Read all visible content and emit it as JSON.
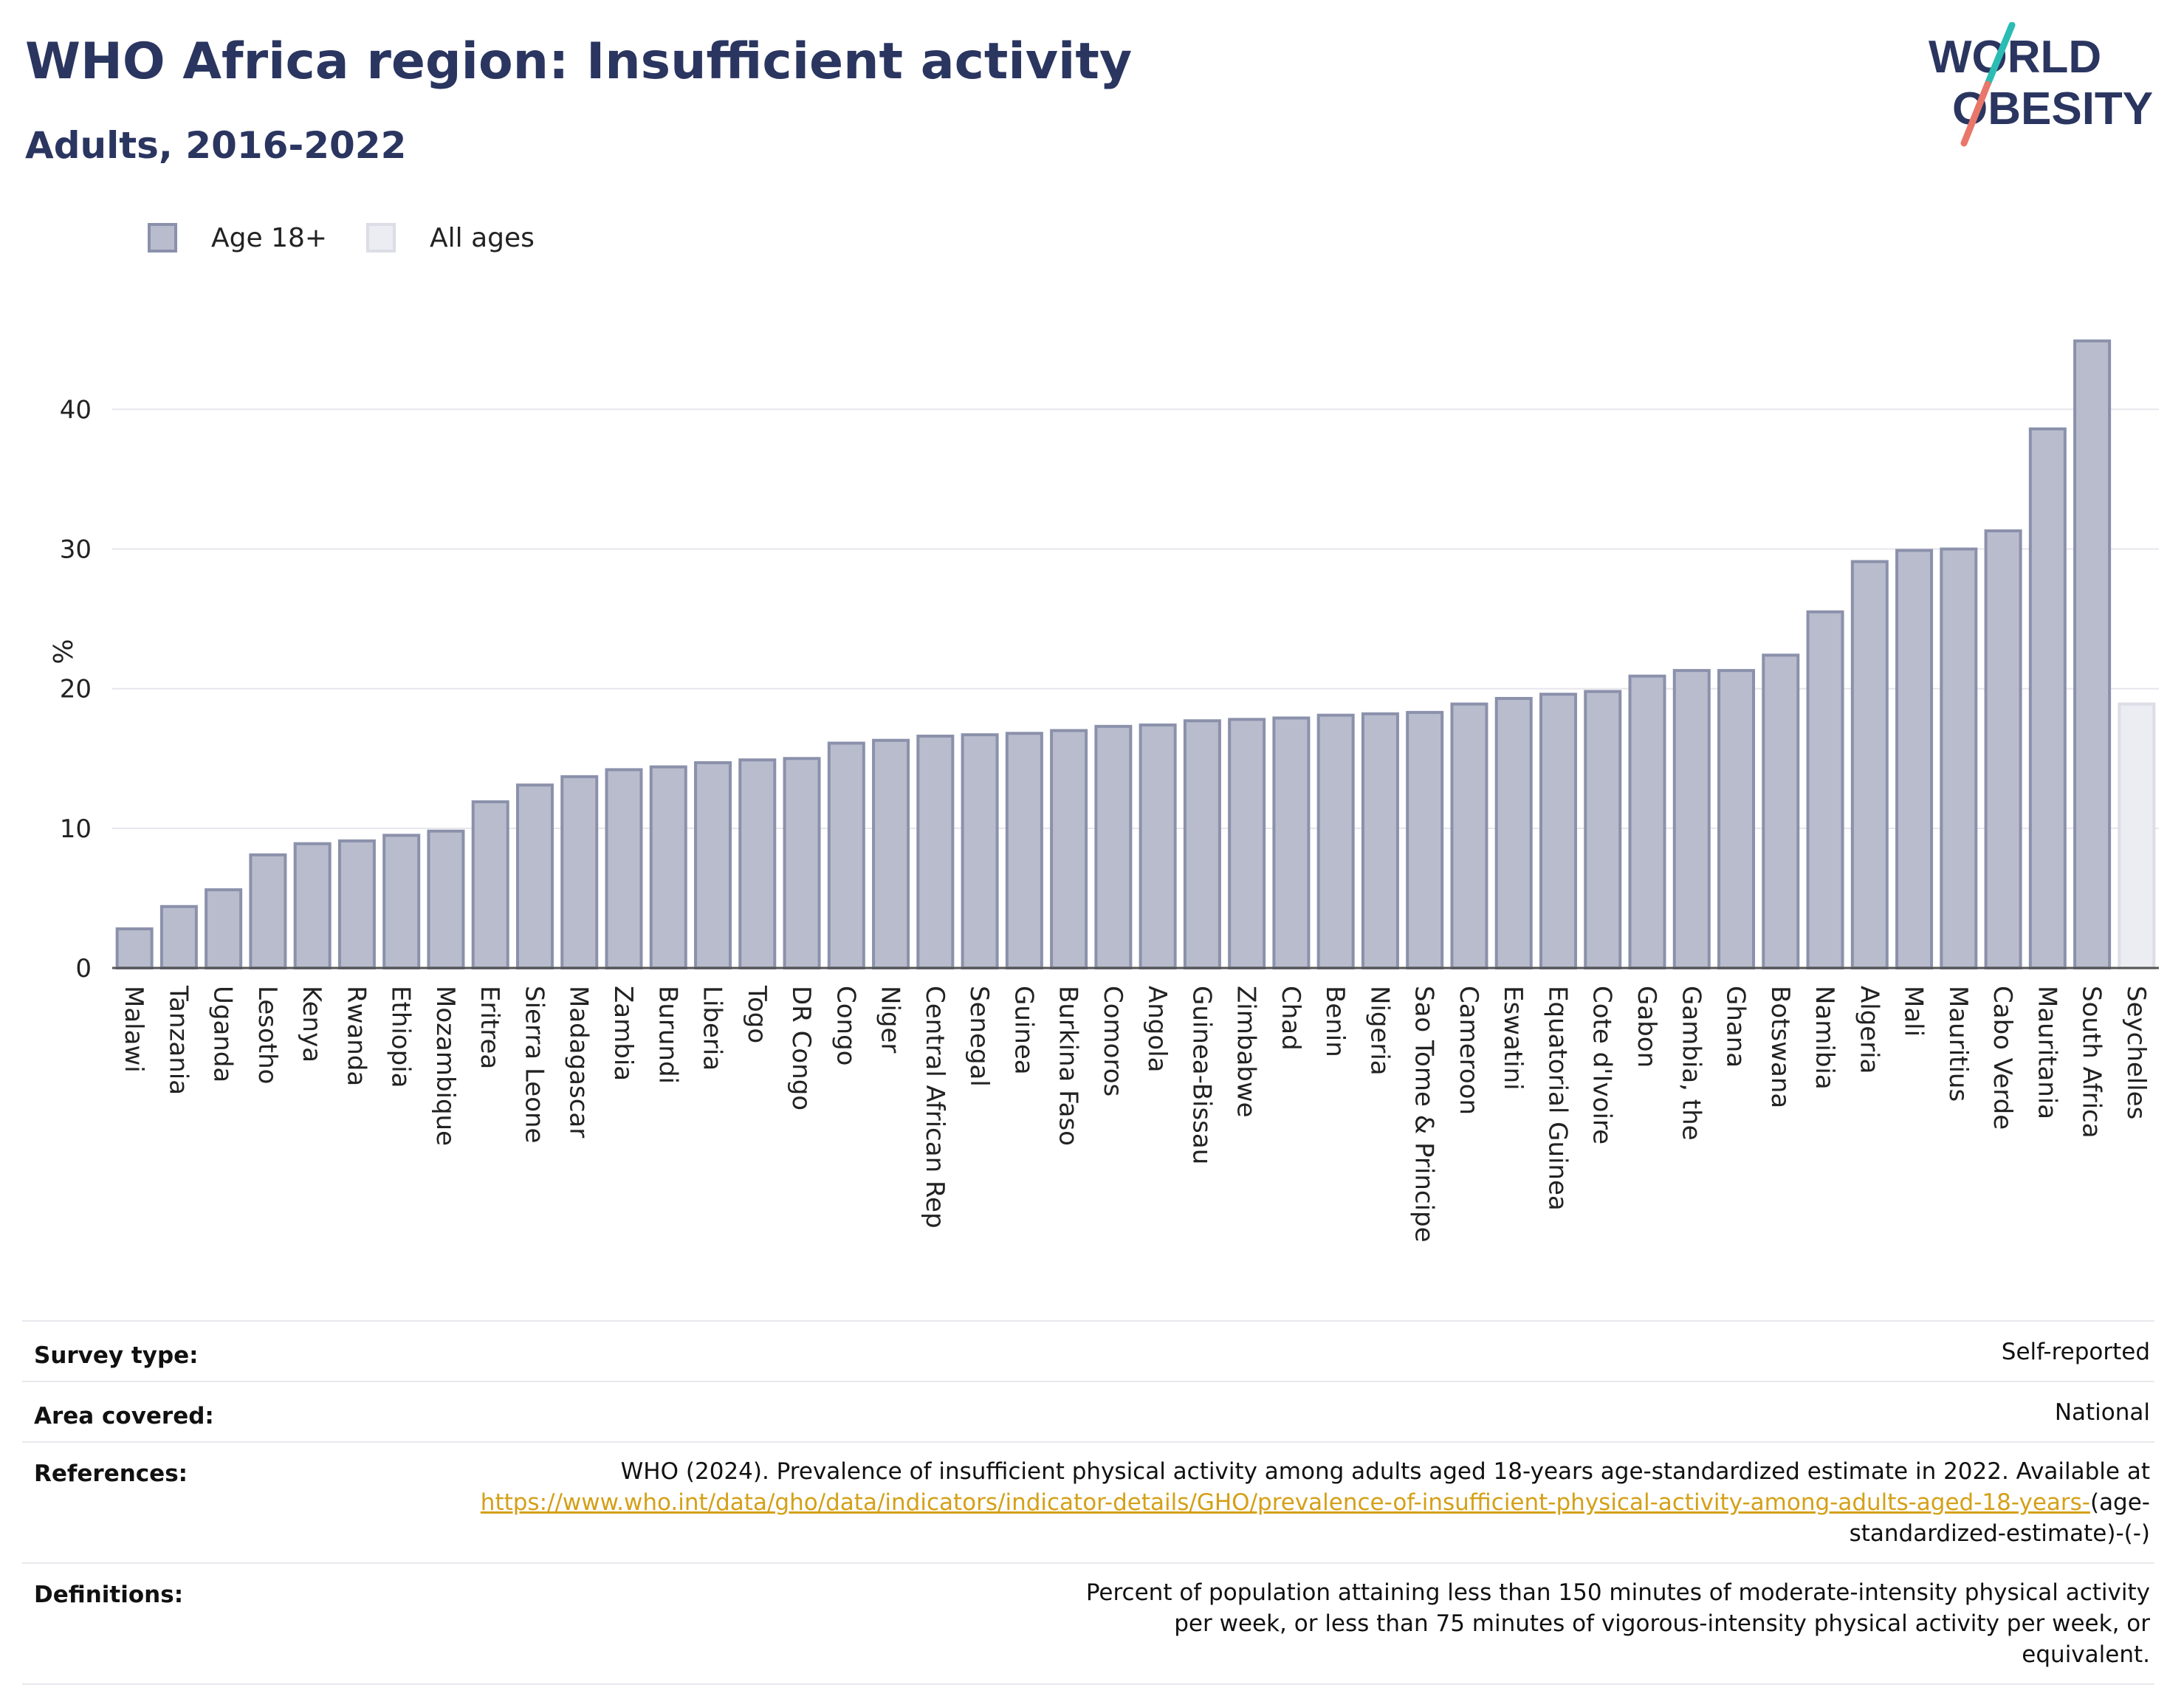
{
  "header": {
    "title": "WHO Africa region: Insufficient activity",
    "subtitle": "Adults, 2016-2022"
  },
  "logo": {
    "line1": "WORLD",
    "line2": "OBESITY",
    "colors": {
      "text": "#2a3560",
      "slash_teal": "#2bbcb4",
      "slash_coral": "#e8766a"
    }
  },
  "legend": [
    {
      "label": "Age 18+",
      "color": "#b8bccc"
    },
    {
      "label": "All ages",
      "color": "#ecedf2"
    }
  ],
  "chart_data": {
    "type": "bar",
    "ylabel": "%",
    "ylim": [
      0,
      47
    ],
    "yticks": [
      0,
      10,
      20,
      30,
      40
    ],
    "grid": true,
    "legend_placement": "top-left",
    "categories": [
      "Malawi",
      "Tanzania",
      "Uganda",
      "Lesotho",
      "Kenya",
      "Rwanda",
      "Ethiopia",
      "Mozambique",
      "Eritrea",
      "Sierra Leone",
      "Madagascar",
      "Zambia",
      "Burundi",
      "Liberia",
      "Togo",
      "DR Congo",
      "Congo",
      "Niger",
      "Central African Rep",
      "Senegal",
      "Guinea",
      "Burkina Faso",
      "Comoros",
      "Angola",
      "Guinea-Bissau",
      "Zimbabwe",
      "Chad",
      "Benin",
      "Nigeria",
      "Sao Tome & Principe",
      "Cameroon",
      "Eswatini",
      "Equatorial Guinea",
      "Cote d'Ivoire",
      "Gabon",
      "Gambia, the",
      "Ghana",
      "Botswana",
      "Namibia",
      "Algeria",
      "Mali",
      "Mauritius",
      "Cabo Verde",
      "Mauritania",
      "South Africa",
      "Seychelles"
    ],
    "series": [
      {
        "name": "Age 18+",
        "color": "#b8bccc",
        "values": [
          2.8,
          4.4,
          5.6,
          8.1,
          8.9,
          9.1,
          9.5,
          9.8,
          11.9,
          13.1,
          13.7,
          14.2,
          14.4,
          14.7,
          14.9,
          15.0,
          16.1,
          16.3,
          16.6,
          16.7,
          16.8,
          17.0,
          17.3,
          17.4,
          17.7,
          17.8,
          17.9,
          18.1,
          18.2,
          18.3,
          18.9,
          19.3,
          19.6,
          19.8,
          20.9,
          21.3,
          21.3,
          22.4,
          25.5,
          29.1,
          29.9,
          30.0,
          31.3,
          38.6,
          44.9,
          null
        ]
      },
      {
        "name": "All ages",
        "color": "#ecedf2",
        "values": [
          null,
          null,
          null,
          null,
          null,
          null,
          null,
          null,
          null,
          null,
          null,
          null,
          null,
          null,
          null,
          null,
          null,
          null,
          null,
          null,
          null,
          null,
          null,
          null,
          null,
          null,
          null,
          null,
          null,
          null,
          null,
          null,
          null,
          null,
          null,
          null,
          null,
          null,
          null,
          null,
          null,
          null,
          null,
          null,
          null,
          18.9
        ]
      }
    ]
  },
  "info": {
    "survey_type": {
      "label": "Survey type:",
      "value": "Self-reported"
    },
    "area_covered": {
      "label": "Area covered:",
      "value": "National"
    },
    "references": {
      "label": "References:",
      "text_before": "WHO (2024). Prevalence of insufficient physical activity among adults aged 18-years age-standardized estimate in 2022. Available at",
      "link": "https://www.who.int/data/gho/data/indicators/indicator-details/GHO/prevalence-of-insufficient-physical-activity-among-adults-aged-18-years-",
      "text_after": "(age-standardized-estimate)-(-)"
    },
    "definitions": {
      "label": "Definitions:",
      "value": "Percent of population attaining less than 150 minutes of moderate-intensity physical activity per week, or less than 75 minutes of vigorous-intensity physical activity per week, or equivalent."
    }
  }
}
